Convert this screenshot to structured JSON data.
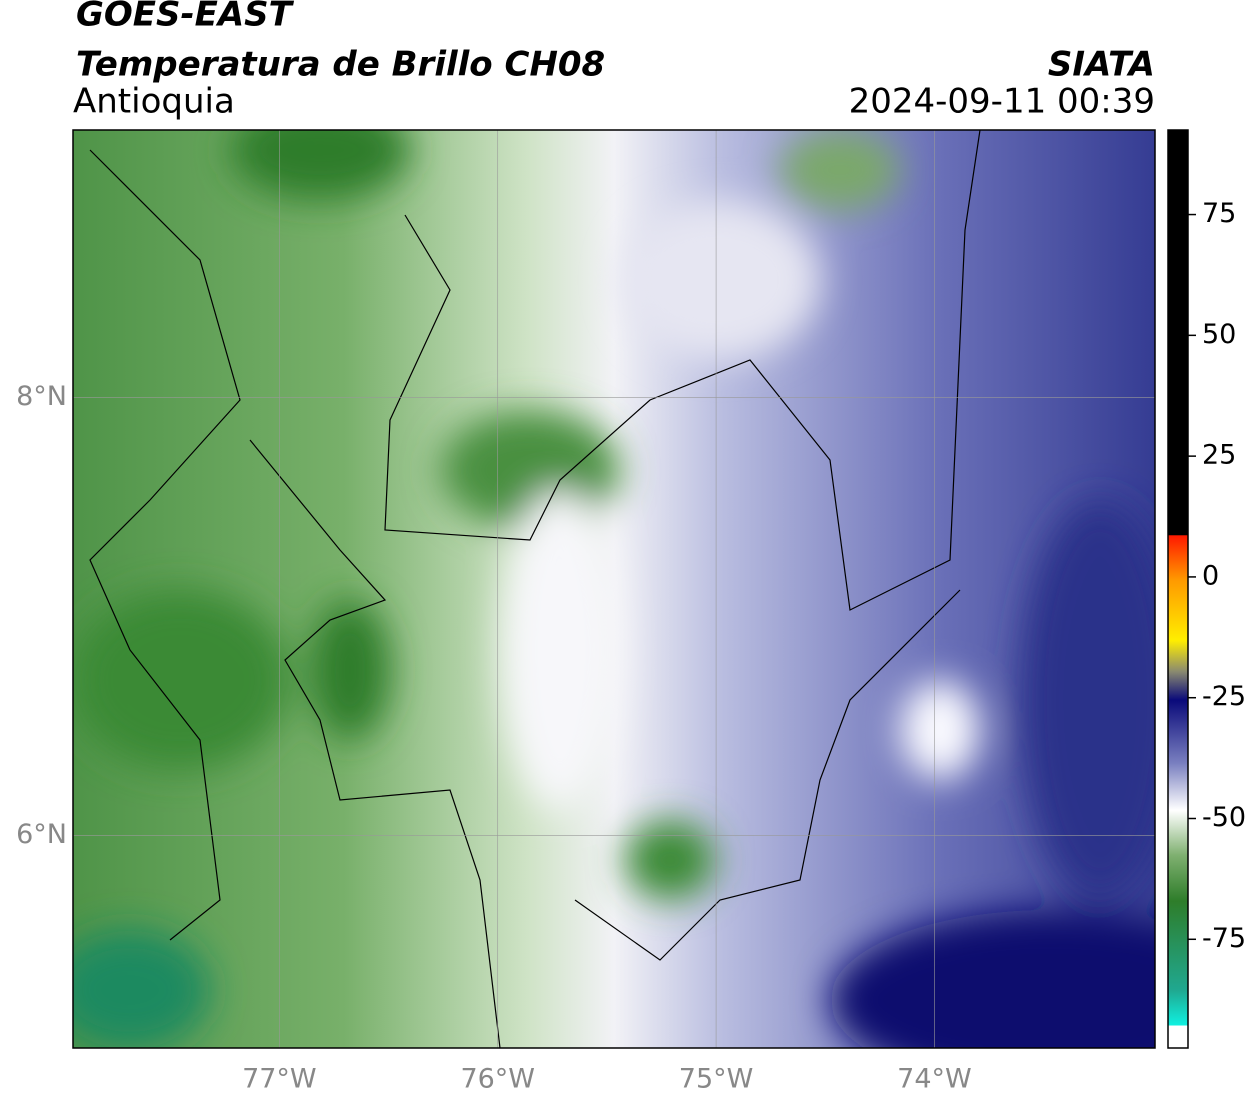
{
  "header": {
    "title": "GOES-EAST",
    "subtitle": "Temperatura de Brillo CH08",
    "region": "Antioquia",
    "source": "SIATA",
    "datetime": "2024-09-11 00:39"
  },
  "map": {
    "xlim": [
      -77.945,
      -72.99
    ],
    "ylim": [
      5.03,
      9.22
    ],
    "xticks": [
      {
        "value": -77,
        "label": "77°W"
      },
      {
        "value": -76,
        "label": "76°W"
      },
      {
        "value": -75,
        "label": "75°W"
      },
      {
        "value": -74,
        "label": "74°W"
      }
    ],
    "yticks": [
      {
        "value": 6,
        "label": "6°N"
      },
      {
        "value": 8,
        "label": "8°N"
      }
    ]
  },
  "colorbar": {
    "lim": [
      -97.5,
      92.5
    ],
    "ticks": [
      75,
      50,
      25,
      0,
      -25,
      -50,
      -75
    ]
  }
}
